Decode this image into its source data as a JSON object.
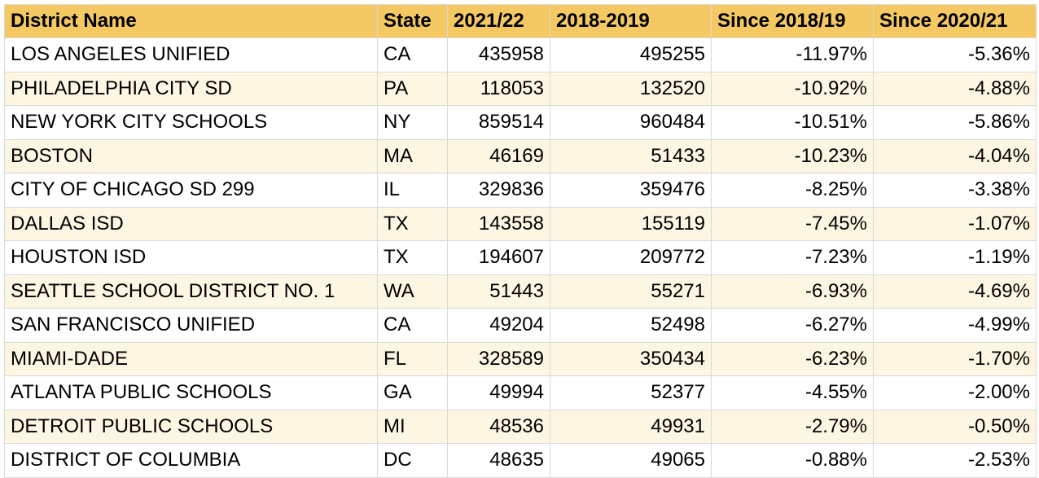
{
  "table": {
    "header": [
      "District Name",
      "State",
      "2021/22",
      "2018-2019",
      "Since 2018/19",
      "Since 2020/21"
    ],
    "rows": [
      [
        "LOS ANGELES UNIFIED",
        "CA",
        "435958",
        "495255",
        "-11.97%",
        "-5.36%"
      ],
      [
        "PHILADELPHIA CITY SD",
        "PA",
        "118053",
        "132520",
        "-10.92%",
        "-4.88%"
      ],
      [
        "NEW YORK CITY SCHOOLS",
        "NY",
        "859514",
        "960484",
        "-10.51%",
        "-5.86%"
      ],
      [
        "BOSTON",
        "MA",
        "46169",
        "51433",
        "-10.23%",
        "-4.04%"
      ],
      [
        "CITY OF CHICAGO SD 299",
        "IL",
        "329836",
        "359476",
        "-8.25%",
        "-3.38%"
      ],
      [
        "DALLAS ISD",
        "TX",
        "143558",
        "155119",
        "-7.45%",
        "-1.07%"
      ],
      [
        "HOUSTON ISD",
        "TX",
        "194607",
        "209772",
        "-7.23%",
        "-1.19%"
      ],
      [
        "SEATTLE SCHOOL DISTRICT NO. 1",
        "WA",
        "51443",
        "55271",
        "-6.93%",
        "-4.69%"
      ],
      [
        "SAN FRANCISCO UNIFIED",
        "CA",
        "49204",
        "52498",
        "-6.27%",
        "-4.99%"
      ],
      [
        "MIAMI-DADE",
        "FL",
        "328589",
        "350434",
        "-6.23%",
        "-1.70%"
      ],
      [
        "ATLANTA PUBLIC SCHOOLS",
        "GA",
        "49994",
        "52377",
        "-4.55%",
        "-2.00%"
      ],
      [
        "DETROIT PUBLIC SCHOOLS",
        "MI",
        "48536",
        "49931",
        "-2.79%",
        "-0.50%"
      ],
      [
        "DISTRICT OF COLUMBIA",
        "DC",
        "48635",
        "49065",
        "-0.88%",
        "-2.53%"
      ]
    ]
  }
}
